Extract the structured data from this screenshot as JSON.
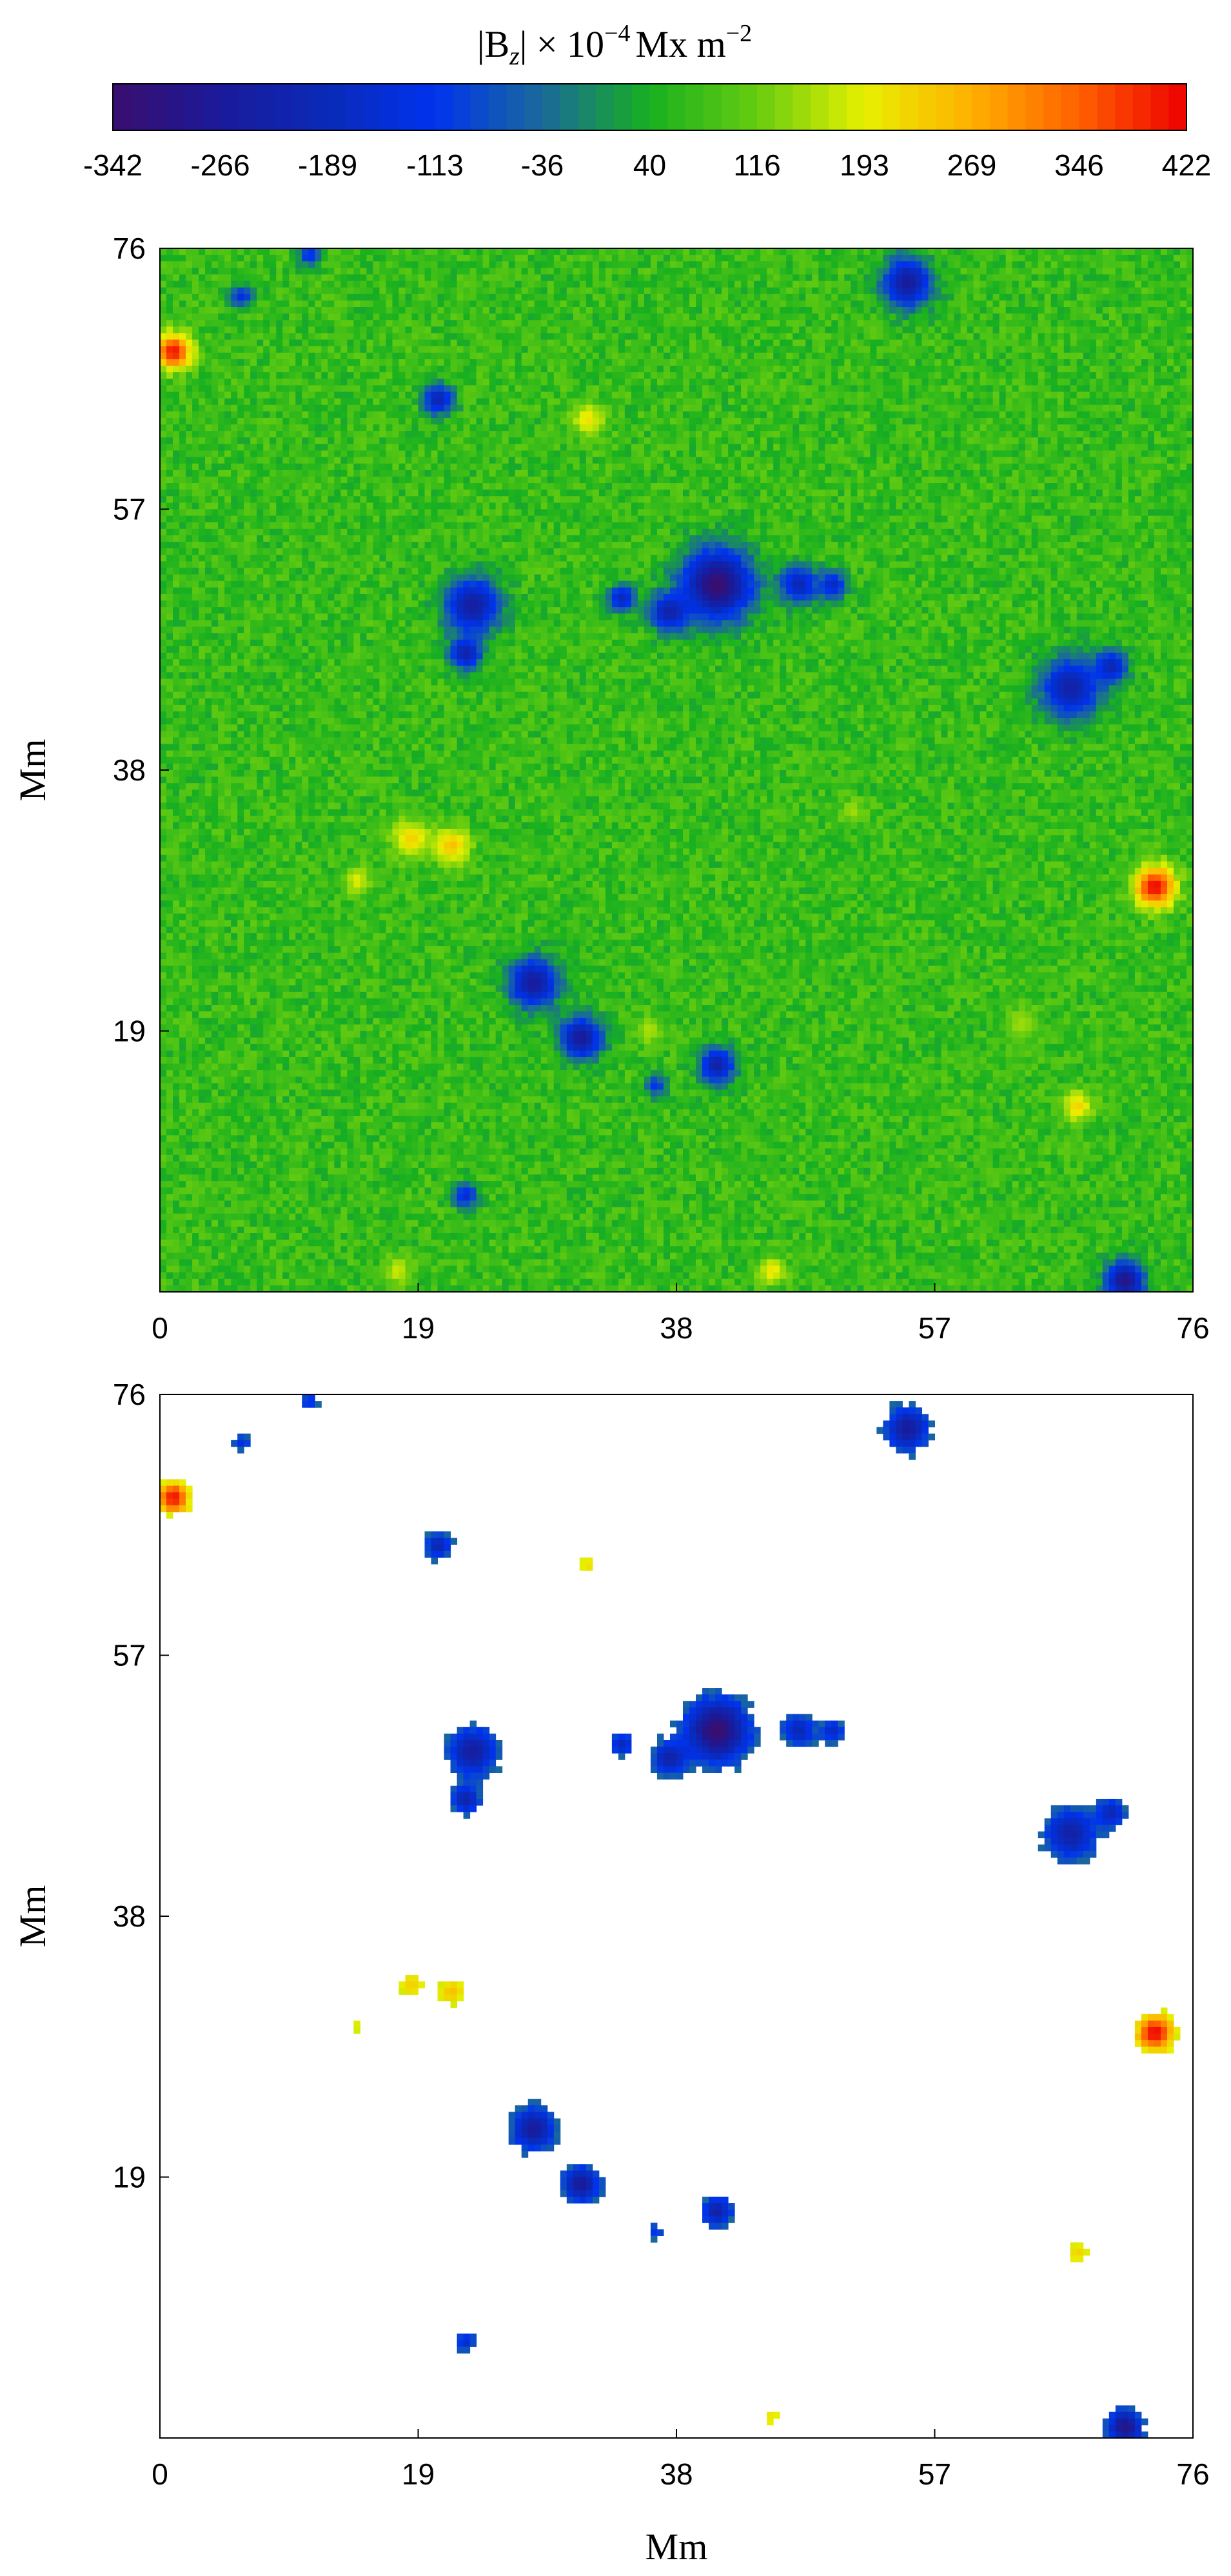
{
  "colorbar": {
    "title": {
      "prefix": "|B",
      "sub": "z",
      "mid": "| × 10",
      "exp": "−4",
      "units": "Mx m",
      "units_exp": "−2"
    },
    "ticks": [
      "-342",
      "-266",
      "-189",
      "-113",
      "-36",
      "40",
      "116",
      "193",
      "269",
      "346",
      "422"
    ],
    "range": [
      -342,
      422
    ],
    "colormap": [
      {
        "v": -342,
        "color": "#3a0e6e"
      },
      {
        "v": -266,
        "color": "#1a1a9a"
      },
      {
        "v": -189,
        "color": "#0a2ab8"
      },
      {
        "v": -113,
        "color": "#0033ee"
      },
      {
        "v": -36,
        "color": "#1a6a9a"
      },
      {
        "v": 40,
        "color": "#18b020"
      },
      {
        "v": 116,
        "color": "#66cc10"
      },
      {
        "v": 193,
        "color": "#e8f000"
      },
      {
        "v": 269,
        "color": "#ffb000"
      },
      {
        "v": 346,
        "color": "#ff6000"
      },
      {
        "v": 422,
        "color": "#ee0000"
      }
    ]
  },
  "chart_data": [
    {
      "type": "heatmap",
      "panel": "top",
      "description_value": "full |Bz| magnetogram with mixed-polarity features on ~70 G background",
      "xlabel": "",
      "ylabel": "Mm",
      "xlim": [
        0,
        76
      ],
      "ylim": [
        0,
        76
      ],
      "xticks": [
        "0",
        "19",
        "38",
        "57",
        "76"
      ],
      "yticks": [
        "19",
        "38",
        "57",
        "76"
      ],
      "background_value": 70,
      "features": [
        {
          "x": 1,
          "y": 68.5,
          "value": 410,
          "size": 1.3
        },
        {
          "x": 31.5,
          "y": 63.5,
          "value": 210,
          "size": 1.2
        },
        {
          "x": 18.5,
          "y": 33,
          "value": 230,
          "size": 1.4
        },
        {
          "x": 21.5,
          "y": 32.5,
          "value": 250,
          "size": 1.3
        },
        {
          "x": 14.5,
          "y": 30,
          "value": 190,
          "size": 1.0
        },
        {
          "x": 73.2,
          "y": 29.5,
          "value": 420,
          "size": 1.5
        },
        {
          "x": 67.5,
          "y": 13.5,
          "value": 230,
          "size": 1.1
        },
        {
          "x": 45,
          "y": 1.5,
          "value": 210,
          "size": 1.0
        },
        {
          "x": 17.5,
          "y": 1.5,
          "value": 180,
          "size": 1.0
        },
        {
          "x": 36,
          "y": 19,
          "value": 160,
          "size": 1.0
        },
        {
          "x": 63.5,
          "y": 19.5,
          "value": 150,
          "size": 1.2
        },
        {
          "x": 51,
          "y": 35,
          "value": 150,
          "size": 0.9
        },
        {
          "x": 41,
          "y": 51.5,
          "value": -340,
          "size": 2.6
        },
        {
          "x": 37.5,
          "y": 49.5,
          "value": -230,
          "size": 1.4
        },
        {
          "x": 34,
          "y": 50.5,
          "value": -190,
          "size": 1.0
        },
        {
          "x": 47,
          "y": 51.5,
          "value": -200,
          "size": 1.4
        },
        {
          "x": 49.5,
          "y": 51.5,
          "value": -180,
          "size": 1.0
        },
        {
          "x": 23,
          "y": 50,
          "value": -250,
          "size": 2.0
        },
        {
          "x": 22.5,
          "y": 46.5,
          "value": -220,
          "size": 1.2
        },
        {
          "x": 67,
          "y": 44,
          "value": -230,
          "size": 2.2
        },
        {
          "x": 70,
          "y": 45.5,
          "value": -200,
          "size": 1.2
        },
        {
          "x": 55,
          "y": 73.5,
          "value": -260,
          "size": 1.8
        },
        {
          "x": 20.5,
          "y": 65,
          "value": -210,
          "size": 1.1
        },
        {
          "x": 27.5,
          "y": 22.5,
          "value": -260,
          "size": 1.8
        },
        {
          "x": 31,
          "y": 18.5,
          "value": -270,
          "size": 1.5
        },
        {
          "x": 41,
          "y": 16.5,
          "value": -230,
          "size": 1.3
        },
        {
          "x": 71,
          "y": 0.8,
          "value": -300,
          "size": 1.4
        },
        {
          "x": 22.5,
          "y": 7,
          "value": -160,
          "size": 0.9
        },
        {
          "x": 36.5,
          "y": 15,
          "value": -120,
          "size": 0.8
        },
        {
          "x": 6,
          "y": 72.5,
          "value": -140,
          "size": 0.8
        },
        {
          "x": 11,
          "y": 75.5,
          "value": -140,
          "size": 0.8
        }
      ]
    },
    {
      "type": "heatmap",
      "panel": "bottom",
      "description_value": "same field with weak background masked to white",
      "xlabel": "Mm",
      "ylabel": "Mm",
      "xlim": [
        0,
        76
      ],
      "ylim": [
        0,
        76
      ],
      "xticks": [
        "0",
        "19",
        "38",
        "57",
        "76"
      ],
      "yticks": [
        "19",
        "38",
        "57",
        "76"
      ],
      "mask_threshold": 110
    }
  ]
}
